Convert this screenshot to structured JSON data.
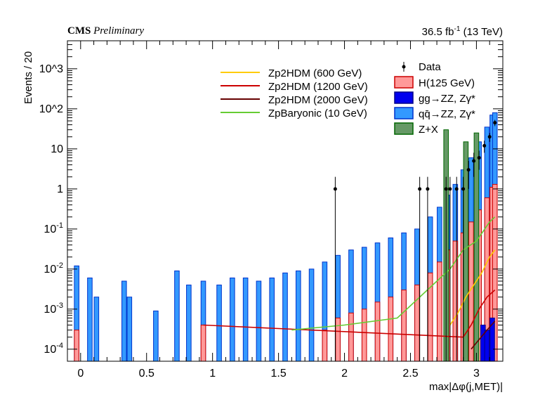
{
  "header": {
    "experiment": "CMS",
    "status": "Preliminary",
    "lumi_value": "36.5 fb",
    "lumi_exp": "-1",
    "energy": "(13 TeV)"
  },
  "chart_data": {
    "type": "bar",
    "xlabel": "max|Δφ(j,MET)|",
    "ylabel": "Events / 20",
    "xlim": [
      -0.1,
      3.2
    ],
    "ylim": [
      5e-05,
      5000
    ],
    "yscale": "log",
    "xticks": [
      "0",
      "0.5",
      "1",
      "1.5",
      "2",
      "2.5",
      "3"
    ],
    "yticks": [
      "10^{-4}",
      "10^{-3}",
      "10^{-2}",
      "10^{-1}",
      "1",
      "10",
      "10^2",
      "10^3"
    ],
    "legend_position": "top-right",
    "background_stack": [
      {
        "name": "qq̄→ZZ, Zγ*",
        "color": "#3399ff",
        "edge": "#0033cc",
        "bins": [
          [
            -0.03,
            0.012
          ],
          [
            0.07,
            0.006
          ],
          [
            0.12,
            0.002
          ],
          [
            0.33,
            0.005
          ],
          [
            0.37,
            0.002
          ],
          [
            0.57,
            0.0009
          ],
          [
            0.73,
            0.009
          ],
          [
            0.82,
            0.004
          ],
          [
            0.93,
            0.005
          ],
          [
            1.05,
            0.004
          ],
          [
            1.15,
            0.006
          ],
          [
            1.25,
            0.006
          ],
          [
            1.35,
            0.005
          ],
          [
            1.45,
            0.006
          ],
          [
            1.55,
            0.008
          ],
          [
            1.65,
            0.009
          ],
          [
            1.75,
            0.01
          ],
          [
            1.85,
            0.015
          ],
          [
            1.95,
            0.022
          ],
          [
            2.05,
            0.03
          ],
          [
            2.15,
            0.035
          ],
          [
            2.25,
            0.045
          ],
          [
            2.35,
            0.06
          ],
          [
            2.45,
            0.08
          ],
          [
            2.55,
            0.1
          ],
          [
            2.65,
            0.2
          ],
          [
            2.72,
            0.35
          ],
          [
            2.78,
            0.7
          ],
          [
            2.84,
            1.3
          ],
          [
            2.9,
            3
          ],
          [
            2.96,
            6
          ],
          [
            3.02,
            15
          ],
          [
            3.08,
            35
          ],
          [
            3.12,
            70
          ],
          [
            3.14,
            80
          ]
        ]
      },
      {
        "name": "H(125 GeV)",
        "color": "#ff9999",
        "edge": "#cc0000",
        "bins": [
          [
            -0.03,
            0.0003
          ],
          [
            0.93,
            0.0004
          ],
          [
            1.85,
            0.0003
          ],
          [
            1.95,
            0.0006
          ],
          [
            2.05,
            0.0008
          ],
          [
            2.15,
            0.001
          ],
          [
            2.25,
            0.0015
          ],
          [
            2.35,
            0.002
          ],
          [
            2.45,
            0.003
          ],
          [
            2.55,
            0.004
          ],
          [
            2.65,
            0.008
          ],
          [
            2.72,
            0.015
          ],
          [
            2.78,
            0.03
          ],
          [
            2.84,
            0.05
          ],
          [
            2.9,
            0.08
          ],
          [
            2.96,
            0.15
          ],
          [
            3.02,
            0.3
          ],
          [
            3.08,
            0.6
          ],
          [
            3.12,
            1.1
          ],
          [
            3.14,
            1.3
          ]
        ]
      },
      {
        "name": "gg→ZZ, Zγ*",
        "color": "#0000ee",
        "edge": "#000088",
        "bins": [
          [
            3.05,
            0.0004
          ],
          [
            3.08,
            0.0003
          ],
          [
            3.12,
            0.0006
          ]
        ]
      },
      {
        "name": "Z+X",
        "color": "#669966",
        "edge": "#006600",
        "bins": [
          [
            2.77,
            30
          ],
          [
            2.92,
            15
          ],
          [
            3.0,
            25
          ]
        ]
      }
    ],
    "signal_lines": [
      {
        "name": "Zp2HDM (600 GeV)",
        "color": "#ffcc00",
        "points": [
          [
            2.8,
            0.0004
          ],
          [
            2.86,
            0.0008
          ],
          [
            2.92,
            0.002
          ],
          [
            2.98,
            0.004
          ],
          [
            3.04,
            0.008
          ],
          [
            3.1,
            0.02
          ],
          [
            3.14,
            0.03
          ]
        ]
      },
      {
        "name": "Zp2HDM (1200 GeV)",
        "color": "#cc0000",
        "points": [
          [
            0.93,
            0.0004
          ],
          [
            2.9,
            0.0002
          ],
          [
            2.96,
            0.0004
          ],
          [
            3.02,
            0.001
          ],
          [
            3.08,
            0.002
          ],
          [
            3.14,
            0.003
          ]
        ]
      },
      {
        "name": "Zp2HDM (2000 GeV)",
        "color": "#660000",
        "points": [
          [
            2.96,
            0.0001
          ],
          [
            3.08,
            0.0003
          ],
          [
            3.14,
            0.0005
          ]
        ]
      },
      {
        "name": "ZpBaryonic (10 GeV)",
        "color": "#66cc33",
        "points": [
          [
            1.6,
            0.0003
          ],
          [
            2.0,
            0.0004
          ],
          [
            2.4,
            0.0006
          ],
          [
            2.7,
            0.005
          ],
          [
            2.8,
            0.01
          ],
          [
            2.9,
            0.03
          ],
          [
            3.0,
            0.05
          ],
          [
            3.1,
            0.15
          ],
          [
            3.14,
            0.2
          ]
        ]
      }
    ],
    "data_points": {
      "name": "Data",
      "points": [
        [
          1.93,
          1,
          1
        ],
        [
          2.57,
          1,
          1
        ],
        [
          2.63,
          1,
          1
        ],
        [
          2.77,
          1,
          1
        ],
        [
          2.8,
          1,
          1
        ],
        [
          2.85,
          1,
          1
        ],
        [
          2.9,
          1,
          1
        ],
        [
          2.94,
          3,
          2
        ],
        [
          2.98,
          5,
          3
        ],
        [
          3.02,
          6,
          3
        ],
        [
          3.06,
          12,
          4
        ],
        [
          3.1,
          20,
          5
        ],
        [
          3.14,
          45,
          8
        ]
      ]
    }
  }
}
